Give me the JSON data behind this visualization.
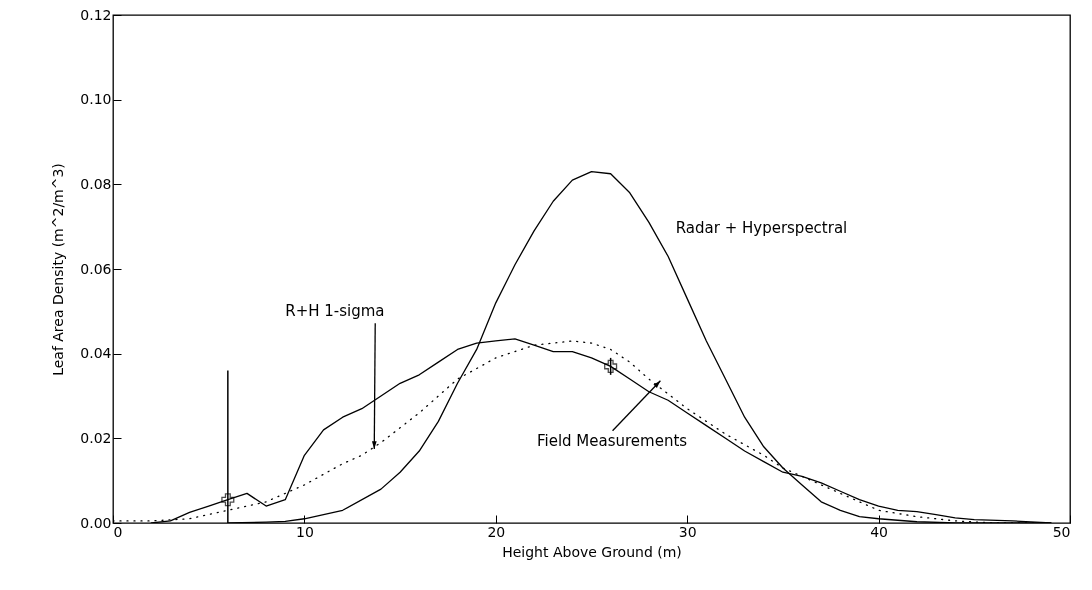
{
  "chart_data": {
    "type": "line",
    "xlabel": "Height Above Ground (m)",
    "ylabel": "Leaf Area Density (m^2/m^3)",
    "xlim": [
      0,
      50
    ],
    "ylim": [
      0,
      0.12
    ],
    "xticks": [
      0,
      10,
      20,
      30,
      40,
      50
    ],
    "yticks": [
      {
        "value": 0,
        "label": "0.00"
      },
      0.02,
      0.04,
      0.06,
      0.08,
      {
        "value": 0.1,
        "label": "0.10"
      },
      0.12
    ],
    "grid": false,
    "series": [
      {
        "name": "Radar + Hyperspectral",
        "color": "#000000",
        "x": [
          6,
          8,
          9,
          10,
          12,
          14,
          15,
          16,
          17,
          18,
          19,
          20,
          21,
          22,
          23,
          24,
          25,
          26,
          27,
          28,
          29,
          30,
          31,
          32,
          33,
          34,
          35,
          36,
          37,
          38,
          39,
          40,
          42,
          44,
          49
        ],
        "values": [
          0,
          0.0002,
          0.0004,
          0.001,
          0.003,
          0.008,
          0.012,
          0.017,
          0.024,
          0.033,
          0.041,
          0.052,
          0.061,
          0.069,
          0.076,
          0.081,
          0.083,
          0.0825,
          0.078,
          0.071,
          0.063,
          0.053,
          0.043,
          0.034,
          0.025,
          0.018,
          0.013,
          0.009,
          0.005,
          0.003,
          0.0015,
          0.001,
          0.0003,
          0,
          0
        ]
      },
      {
        "name": "Field Measurements",
        "color": "#000000",
        "x": [
          2,
          3,
          4,
          5,
          6,
          7,
          8,
          9,
          10,
          11,
          12,
          13,
          14,
          15,
          16,
          17,
          18,
          19,
          20,
          21,
          22,
          23,
          24,
          25,
          26,
          27,
          28,
          29,
          30,
          31,
          32,
          33,
          34,
          35,
          36,
          37,
          38,
          39,
          40,
          41,
          42,
          43,
          44,
          45,
          47,
          49
        ],
        "values": [
          0,
          0.0005,
          0.0025,
          0.004,
          0.0055,
          0.007,
          0.004,
          0.0055,
          0.016,
          0.022,
          0.025,
          0.027,
          0.03,
          0.033,
          0.035,
          0.038,
          0.041,
          0.0425,
          0.043,
          0.0435,
          0.042,
          0.0405,
          0.0405,
          0.039,
          0.037,
          0.034,
          0.031,
          0.029,
          0.026,
          0.023,
          0.02,
          0.017,
          0.0145,
          0.012,
          0.011,
          0.0095,
          0.0075,
          0.0055,
          0.004,
          0.003,
          0.0027,
          0.002,
          0.0012,
          0.0008,
          0.0005,
          0
        ]
      },
      {
        "name": "R+H 1-sigma",
        "color": "#000000",
        "line_style": "dotted",
        "x": [
          0,
          2,
          4,
          6,
          8,
          10,
          12,
          13,
          14,
          16,
          18,
          20,
          22,
          24,
          25,
          26,
          27,
          28,
          30,
          32,
          34,
          35,
          36,
          38,
          40,
          42,
          44,
          46,
          49
        ],
        "values": [
          0.0005,
          0.0005,
          0.001,
          0.003,
          0.005,
          0.009,
          0.014,
          0.016,
          0.019,
          0.026,
          0.034,
          0.039,
          0.042,
          0.043,
          0.0425,
          0.041,
          0.038,
          0.034,
          0.027,
          0.021,
          0.016,
          0.013,
          0.011,
          0.007,
          0.003,
          0.0015,
          0.0005,
          0,
          0
        ]
      },
      {
        "type": "scatter",
        "color": "#000000",
        "marker": "cross",
        "x": [
          6,
          26
        ],
        "values": [
          0.0055,
          0.037
        ],
        "errors": [
          [
            0,
            0.036
          ],
          [
            0.035,
            0.039
          ]
        ]
      }
    ]
  }
}
